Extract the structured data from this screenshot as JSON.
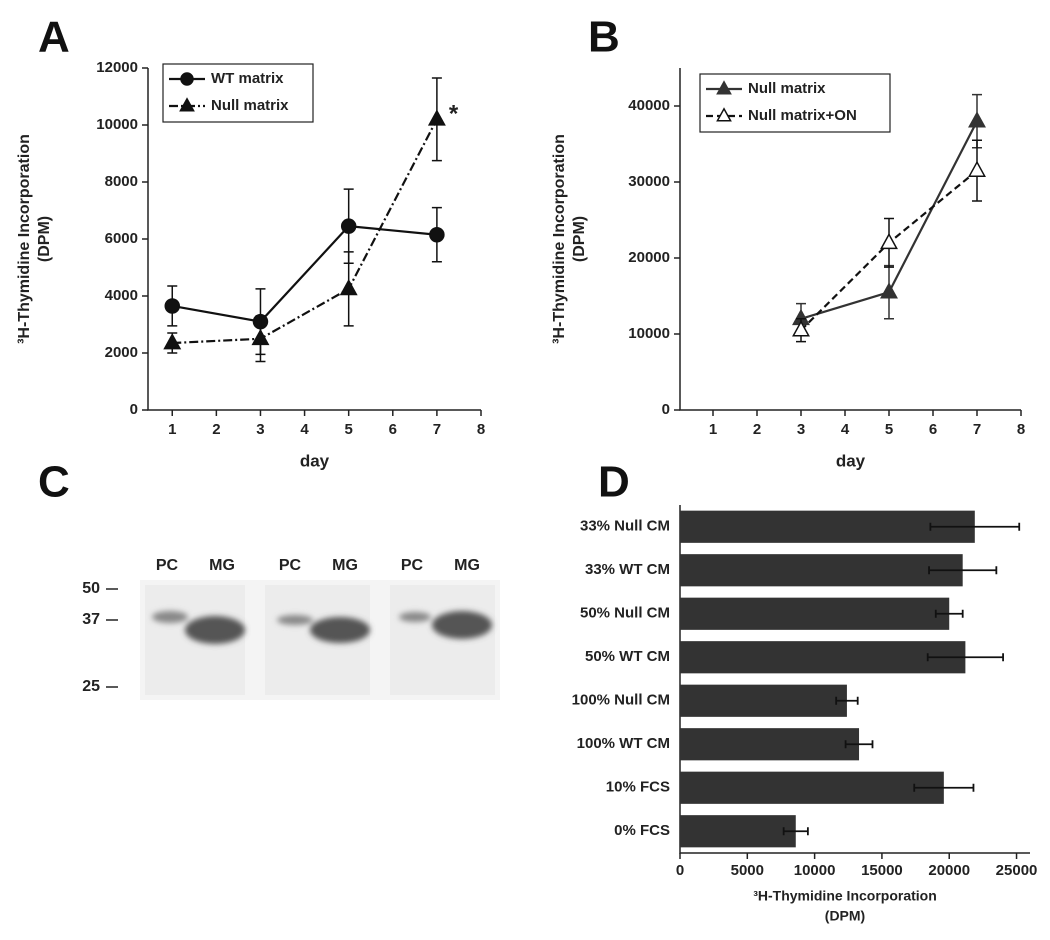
{
  "chart_data": [
    {
      "type": "line",
      "title": "A",
      "x": [
        1,
        3,
        5,
        7
      ],
      "xlim": [
        0.45,
        8
      ],
      "xticks": [
        1,
        2,
        3,
        4,
        5,
        6,
        7,
        8
      ],
      "ylim": [
        0,
        12000
      ],
      "yticks": [
        0,
        2000,
        4000,
        6000,
        8000,
        10000,
        12000
      ],
      "xlabel": "day",
      "ylabel": [
        "³H-Thymidine Incorporation",
        "(DPM)"
      ],
      "legend": "upper left",
      "series": [
        {
          "name": "WT matrix",
          "color": "#111111",
          "marker": "circle",
          "marker_fill": "#111111",
          "linestyle": "solid",
          "values": [
            3650,
            3100,
            6450,
            6150
          ],
          "errors": [
            700,
            1150,
            1300,
            950
          ]
        },
        {
          "name": "Null matrix",
          "color": "#111111",
          "marker": "triangle",
          "marker_fill": "#111111",
          "linestyle": "dashdot",
          "values": [
            2350,
            2500,
            4250,
            10200
          ],
          "errors": [
            350,
            800,
            1300,
            1450
          ],
          "annotation": "*"
        }
      ]
    },
    {
      "type": "line",
      "title": "B",
      "x": [
        3,
        5,
        7
      ],
      "xlim": [
        0.25,
        8
      ],
      "xticks": [
        1,
        2,
        3,
        4,
        5,
        6,
        7,
        8
      ],
      "ylim": [
        0,
        45000
      ],
      "yticks": [
        0,
        10000,
        20000,
        30000,
        40000
      ],
      "xlabel": "day",
      "ylabel": [
        "³H-Thymidine Incorporation",
        "(DPM)"
      ],
      "legend": "upper left",
      "series": [
        {
          "name": "Null matrix",
          "color": "#333333",
          "marker": "triangle",
          "marker_fill": "#333333",
          "linestyle": "solid",
          "values": [
            12000,
            15500,
            38000
          ],
          "errors": [
            2000,
            3500,
            3500
          ]
        },
        {
          "name": "Null matrix+ON",
          "color": "#111111",
          "marker": "triangle",
          "marker_fill": "#ffffff",
          "linestyle": "dash",
          "values": [
            10500,
            22000,
            31500
          ],
          "errors": [
            1500,
            3200,
            4000
          ]
        }
      ]
    },
    {
      "type": "blot",
      "title": "C",
      "lanes": [
        "PC",
        "MG",
        "PC",
        "MG",
        "PC",
        "MG"
      ],
      "markers": [
        50,
        37,
        25
      ]
    },
    {
      "type": "hbar",
      "title": "D",
      "categories": [
        "33% Null CM",
        "33% WT CM",
        "50% Null CM",
        "50% WT CM",
        "100% Null CM",
        "100% WT CM",
        "10% FCS",
        "0% FCS"
      ],
      "values": [
        21900,
        21000,
        20000,
        21200,
        12400,
        13300,
        19600,
        8600
      ],
      "errors": [
        3300,
        2500,
        1000,
        2800,
        800,
        1000,
        2200,
        900
      ],
      "color": "#333333",
      "xlim": [
        0,
        26000
      ],
      "xticks": [
        0,
        5000,
        10000,
        15000,
        20000,
        25000
      ],
      "xlabel": [
        "³H-Thymidine Incorporation",
        "(DPM)"
      ]
    }
  ]
}
